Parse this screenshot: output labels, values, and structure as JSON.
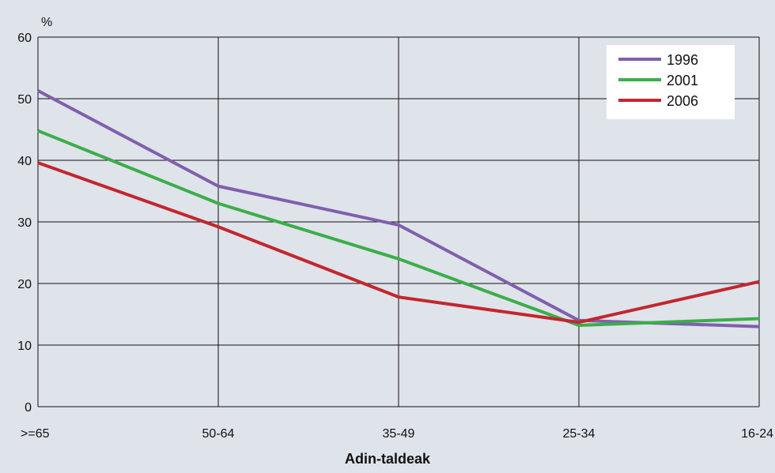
{
  "chart_data": {
    "type": "line",
    "ylabel": "%",
    "xlabel": "Adin-taldeak",
    "categories": [
      ">=65",
      "50-64",
      "35-49",
      "25-34",
      "16-24"
    ],
    "ylim": [
      0,
      60
    ],
    "yticks": [
      0,
      10,
      20,
      30,
      40,
      50,
      60
    ],
    "grid": true,
    "legend_position": "top-right",
    "series": [
      {
        "name": "1996",
        "color": "#7f5fad",
        "values": [
          51.3,
          35.8,
          29.5,
          14.0,
          13.0
        ]
      },
      {
        "name": "2001",
        "color": "#3aae49",
        "values": [
          44.8,
          33.0,
          24.0,
          13.2,
          14.3
        ]
      },
      {
        "name": "2006",
        "color": "#c1272d",
        "values": [
          39.6,
          29.2,
          17.8,
          13.7,
          20.3
        ]
      }
    ]
  }
}
